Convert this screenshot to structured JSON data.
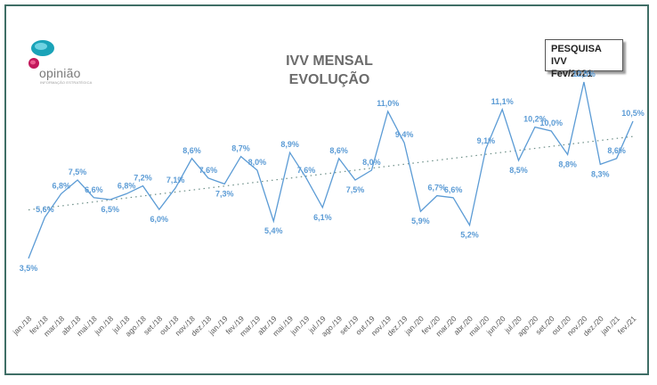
{
  "title": {
    "line1": "IVV MENSAL",
    "line2": "EVOLUÇÃO"
  },
  "badge": {
    "line1": "PESQUISA IVV",
    "line2": "Fev/2021"
  },
  "logo": {
    "name": "opinião",
    "tagline": "INFORMAÇÃO ESTRATÉGICA"
  },
  "colors": {
    "series": "#5b9bd5",
    "labels": "#5b9bd5",
    "trend": "#6d8f88",
    "frame": "#3f6e66"
  },
  "chart_data": {
    "type": "line",
    "categories": [
      "jan./18",
      "fev./18",
      "mar./18",
      "abr./18",
      "mai./18",
      "jun./18",
      "jul./18",
      "ago./18",
      "set./18",
      "out./18",
      "nov./18",
      "dez./18",
      "jan./19",
      "fev./19",
      "mar./19",
      "abr./19",
      "mai./19",
      "jun./19",
      "jul./19",
      "ago./19",
      "set./19",
      "out./19",
      "nov./19",
      "dez./19",
      "jan./20",
      "fev./20",
      "mar./20",
      "abr./20",
      "mai./20",
      "jun./20",
      "jul./20",
      "ago./20",
      "set./20",
      "out./20",
      "nov./20",
      "dez./20",
      "jan./21",
      "fev./21"
    ],
    "values": [
      3.5,
      5.6,
      6.8,
      7.5,
      6.6,
      6.5,
      6.8,
      7.2,
      6.0,
      7.1,
      8.6,
      7.6,
      7.3,
      8.7,
      8.0,
      5.4,
      8.9,
      7.6,
      6.1,
      8.6,
      7.5,
      8.0,
      11.0,
      9.4,
      5.9,
      6.7,
      6.6,
      5.2,
      9.1,
      11.1,
      8.5,
      10.2,
      10.0,
      8.8,
      12.5,
      8.3,
      8.6,
      10.5
    ],
    "data_labels": [
      "3,5%",
      "5,6%",
      "6,8%",
      "7,5%",
      "6,6%",
      "6,5%",
      "6,8%",
      "7,2%",
      "6,0%",
      "7,1%",
      "8,6%",
      "7,6%",
      "7,3%",
      "8,7%",
      "8,0%",
      "5,4%",
      "8,9%",
      "7,6%",
      "6,1%",
      "8,6%",
      "7,5%",
      "8,0%",
      "11,0%",
      "9,4%",
      "5,9%",
      "6,7%",
      "6,6%",
      "5,2%",
      "9,1%",
      "11,1%",
      "8,5%",
      "10,2%",
      "10,0%",
      "8,8%",
      "12,5%",
      "8,3%",
      "8,6%",
      "10,5%"
    ],
    "trendline": "linear",
    "ylim": [
      2.5,
      13.5
    ],
    "grid": false,
    "legend": "none",
    "xlabel": "",
    "ylabel": ""
  }
}
